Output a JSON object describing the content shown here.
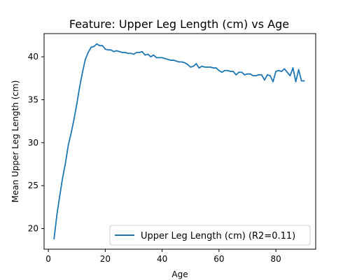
{
  "chart_data": {
    "type": "line",
    "title": "Feature: Upper Leg Length (cm) vs Age",
    "xlabel": "Age",
    "ylabel": "Mean Upper Leg Length (cm)",
    "xlim": [
      -1.5,
      94
    ],
    "ylim": [
      17.6,
      42.7
    ],
    "xticks": [
      0,
      20,
      40,
      60,
      80
    ],
    "yticks": [
      20,
      25,
      30,
      35,
      40
    ],
    "grid": false,
    "legend_position": "lower-right",
    "series": [
      {
        "name": "Upper Leg Length (cm) (R2=0.11)",
        "color": "#1f77b4",
        "x": [
          2,
          3,
          4,
          5,
          6,
          7,
          8,
          9,
          10,
          11,
          12,
          13,
          14,
          15,
          16,
          17,
          18,
          19,
          20,
          21,
          22,
          23,
          24,
          25,
          26,
          27,
          28,
          29,
          30,
          31,
          32,
          33,
          34,
          35,
          36,
          37,
          38,
          39,
          40,
          41,
          42,
          43,
          44,
          45,
          46,
          47,
          48,
          49,
          50,
          51,
          52,
          53,
          54,
          55,
          56,
          57,
          58,
          59,
          60,
          61,
          62,
          63,
          64,
          65,
          66,
          67,
          68,
          69,
          70,
          71,
          72,
          73,
          74,
          75,
          76,
          77,
          78,
          79,
          80,
          81,
          82,
          83,
          84,
          85,
          86,
          87,
          88,
          89,
          90
        ],
        "values": [
          18.8,
          21.6,
          23.8,
          25.9,
          27.6,
          29.7,
          31.1,
          32.7,
          34.5,
          36.5,
          38.2,
          39.7,
          40.5,
          41.1,
          41.2,
          41.5,
          41.3,
          41.3,
          40.9,
          40.8,
          40.8,
          40.6,
          40.7,
          40.6,
          40.5,
          40.5,
          40.4,
          40.4,
          40.3,
          40.5,
          40.5,
          40.6,
          40.2,
          40.3,
          40.0,
          40.2,
          39.9,
          39.9,
          39.9,
          39.8,
          39.7,
          39.6,
          39.6,
          39.5,
          39.4,
          39.4,
          39.3,
          39.1,
          38.8,
          38.9,
          39.2,
          38.7,
          38.9,
          38.8,
          38.8,
          38.8,
          38.7,
          38.7,
          38.4,
          38.2,
          38.4,
          38.4,
          38.3,
          38.3,
          37.9,
          38.2,
          38.2,
          37.9,
          38.0,
          38.0,
          37.8,
          37.8,
          37.9,
          37.9,
          37.3,
          37.9,
          37.8,
          37.1,
          38.3,
          38.4,
          38.3,
          38.6,
          38.2,
          37.8,
          38.7,
          37.1,
          38.5,
          37.2,
          37.2
        ]
      }
    ]
  }
}
